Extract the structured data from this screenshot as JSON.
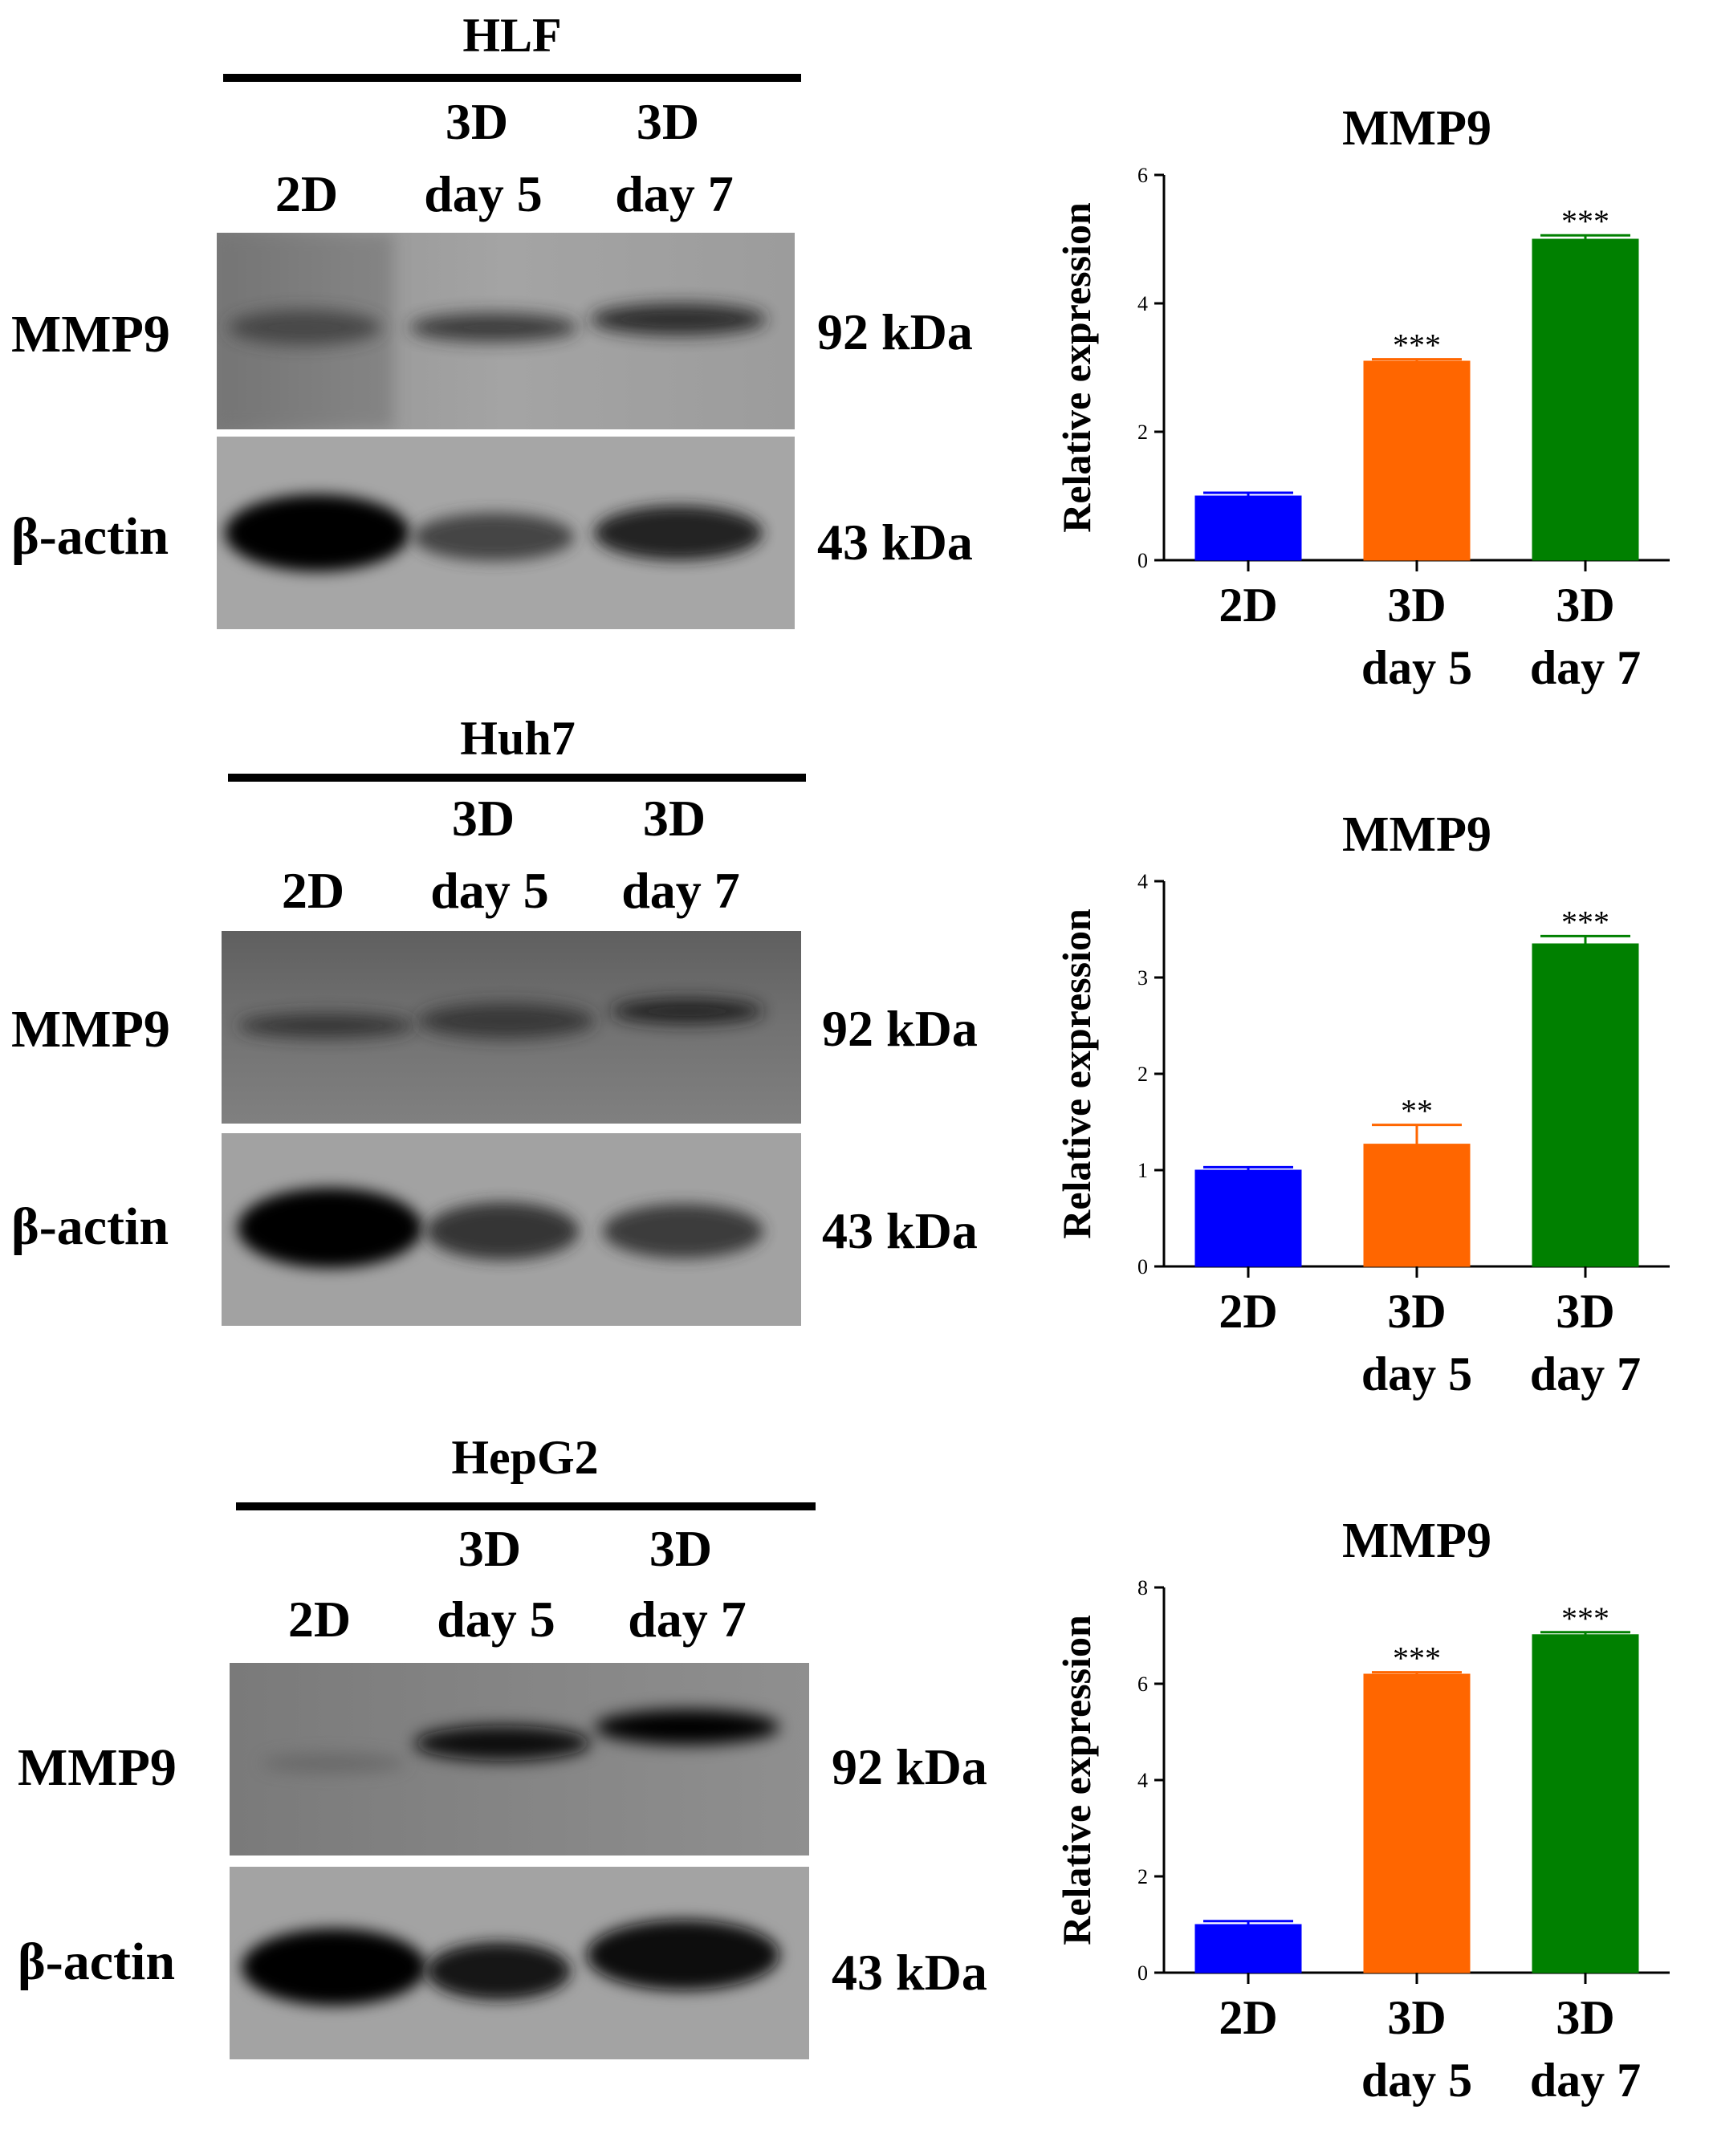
{
  "rows": [
    {
      "cell_line": "HLF",
      "lanes": [
        "2D",
        "3D\nday 5",
        "3D\nday 7"
      ],
      "bands": [
        {
          "protein": "MMP9",
          "size": "92 kDa"
        },
        {
          "protein": "β-actin",
          "size": "43 kDa"
        }
      ],
      "chart_data": {
        "type": "bar",
        "title": "MMP9",
        "ylabel": "Relative expression",
        "xlabel": "",
        "categories": [
          "2D",
          "3D\nday 5",
          "3D\nday 7"
        ],
        "values": [
          1.0,
          3.1,
          5.0
        ],
        "errors": [
          0.05,
          0.03,
          0.06
        ],
        "significance": [
          "",
          "***",
          "***"
        ],
        "colors": [
          "#0000ff",
          "#ff6600",
          "#008000"
        ],
        "ylim": [
          0,
          6
        ],
        "yticks": [
          0,
          2,
          4,
          6
        ]
      }
    },
    {
      "cell_line": "Huh7",
      "lanes": [
        "2D",
        "3D\nday 5",
        "3D\nday 7"
      ],
      "bands": [
        {
          "protein": "MMP9",
          "size": "92 kDa"
        },
        {
          "protein": "β-actin",
          "size": "43 kDa"
        }
      ],
      "chart_data": {
        "type": "bar",
        "title": "MMP9",
        "ylabel": "Relative expression",
        "xlabel": "",
        "categories": [
          "2D",
          "3D\nday 5",
          "3D\nday 7"
        ],
        "values": [
          1.0,
          1.27,
          3.35
        ],
        "errors": [
          0.03,
          0.2,
          0.08
        ],
        "significance": [
          "",
          "**",
          "***"
        ],
        "colors": [
          "#0000ff",
          "#ff6600",
          "#008000"
        ],
        "ylim": [
          0,
          4
        ],
        "yticks": [
          0,
          1,
          2,
          3,
          4
        ]
      }
    },
    {
      "cell_line": "HepG2",
      "lanes": [
        "2D",
        "3D\nday 5",
        "3D\nday 7"
      ],
      "bands": [
        {
          "protein": "MMP9",
          "size": "92 kDa"
        },
        {
          "protein": "β-actin",
          "size": "43 kDa"
        }
      ],
      "chart_data": {
        "type": "bar",
        "title": "MMP9",
        "ylabel": "Relative expression",
        "xlabel": "",
        "categories": [
          "2D",
          "3D\nday 5",
          "3D\nday 7"
        ],
        "values": [
          1.0,
          6.2,
          7.02
        ],
        "errors": [
          0.07,
          0.04,
          0.05
        ],
        "significance": [
          "",
          "***",
          "***"
        ],
        "colors": [
          "#0000ff",
          "#ff6600",
          "#008000"
        ],
        "ylim": [
          0,
          8
        ],
        "yticks": [
          0,
          2,
          4,
          6,
          8
        ]
      }
    }
  ]
}
